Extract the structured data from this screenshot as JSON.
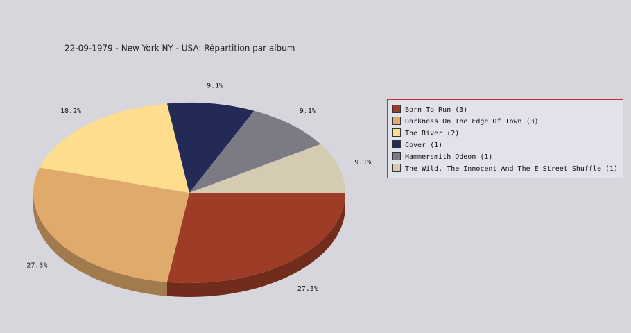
{
  "chart_data": {
    "type": "pie",
    "title": "22-09-1979 - New York NY - USA:  Répartition par album",
    "categories": [
      "Born To Run (3)",
      "Darkness On The Edge Of Town (3)",
      "The River (2)",
      "Cover (1)",
      "Hammersmith Odeon  (1)",
      "The Wild, The Innocent And The E Street Shuffle (1)"
    ],
    "values": [
      27.3,
      27.3,
      18.2,
      9.1,
      9.1,
      9.1
    ],
    "value_labels": [
      "27.3%",
      "27.3%",
      "18.2%",
      "9.1%",
      "9.1%",
      "9.1%"
    ],
    "colors": [
      "#9e3d27",
      "#e0aa6b",
      "#fedd8f",
      "#222a55",
      "#7b7a85",
      "#d5cab2"
    ],
    "legend": "right"
  }
}
